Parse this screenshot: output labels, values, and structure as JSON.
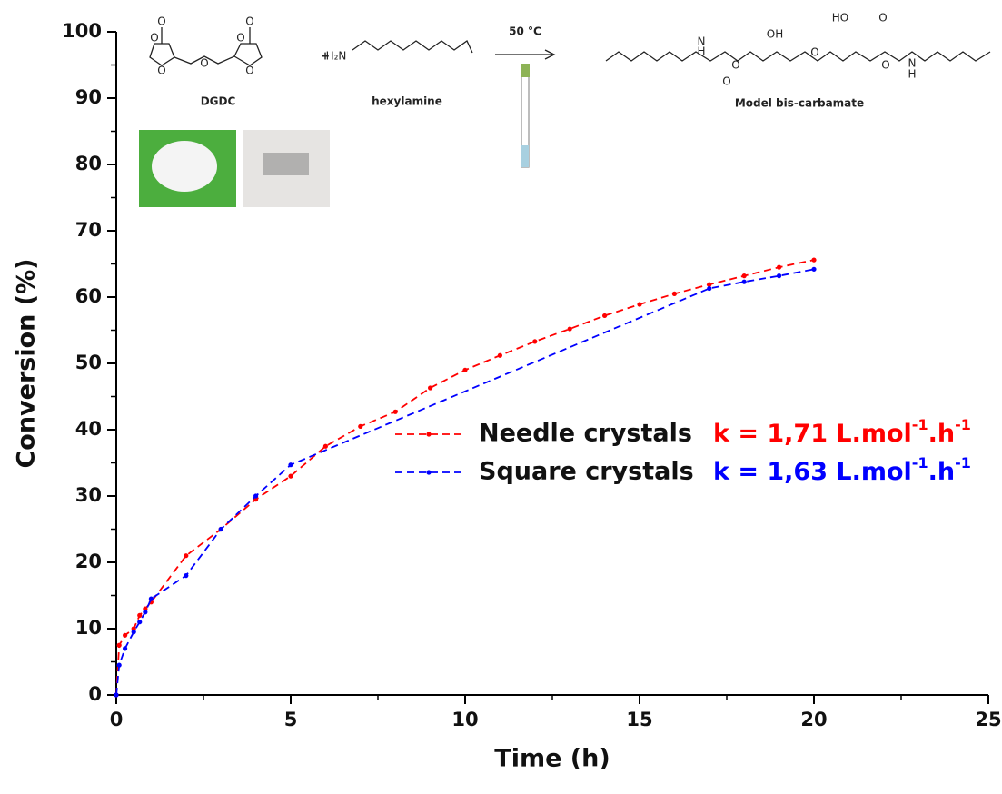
{
  "chart_data": {
    "type": "line",
    "x_label": "Time (h)",
    "y_label": "Conversion (%)",
    "xlim": [
      0,
      25
    ],
    "xticks": [
      0,
      5,
      10,
      15,
      20,
      25
    ],
    "xminor_ticks": [
      2.5,
      7.5,
      12.5,
      17.5,
      22.5
    ],
    "ylim": [
      0,
      100
    ],
    "yticks": [
      0,
      10,
      20,
      30,
      40,
      50,
      60,
      70,
      80,
      90,
      100
    ],
    "yminor_ticks": [
      5,
      15,
      25,
      35,
      45,
      55,
      65,
      75,
      85,
      95
    ],
    "series": [
      {
        "name": "Needle crystals",
        "color": "#ff0000",
        "annotation": [
          "k = 1,71 L.mol",
          "-1",
          ".h",
          "-1"
        ],
        "x": [
          0,
          0.083,
          0.25,
          0.5,
          0.67,
          0.83,
          1,
          2,
          3,
          4,
          5,
          6,
          7,
          8,
          9,
          10,
          11,
          12,
          13,
          14,
          15,
          16,
          17,
          18,
          19,
          20
        ],
        "values": [
          0,
          7.5,
          9,
          10,
          12,
          13,
          14,
          21,
          25,
          29.5,
          33,
          37.5,
          40.5,
          42.7,
          46.3,
          49,
          51.2,
          53.3,
          55.2,
          57.2,
          58.9,
          60.5,
          61.9,
          63.2,
          64.5,
          65.6
        ]
      },
      {
        "name": "Square crystals",
        "color": "#0000ff",
        "annotation": [
          "k = 1,63 L.mol",
          "-1",
          ".h",
          "-1"
        ],
        "x": [
          0,
          0.083,
          0.25,
          0.5,
          0.67,
          0.83,
          1,
          2,
          3,
          4,
          5,
          17,
          18,
          19,
          20
        ],
        "values": [
          0,
          4.5,
          7,
          9.5,
          11,
          12.5,
          14.5,
          18,
          25,
          30,
          34.7,
          61.3,
          62.3,
          63.2,
          64.2
        ]
      }
    ],
    "scheme": {
      "reactant1": "DGDC",
      "plus": "+",
      "reactant2": "hexylamine",
      "condition": "50 °C",
      "product": "Model bis-carbamate",
      "atoms": [
        "O",
        "O",
        "O",
        "O",
        "O",
        "O",
        "O",
        "H₂N",
        "N",
        "H",
        "O",
        "O",
        "OH",
        "O",
        "HO",
        "O",
        "O",
        "N",
        "H"
      ]
    }
  }
}
